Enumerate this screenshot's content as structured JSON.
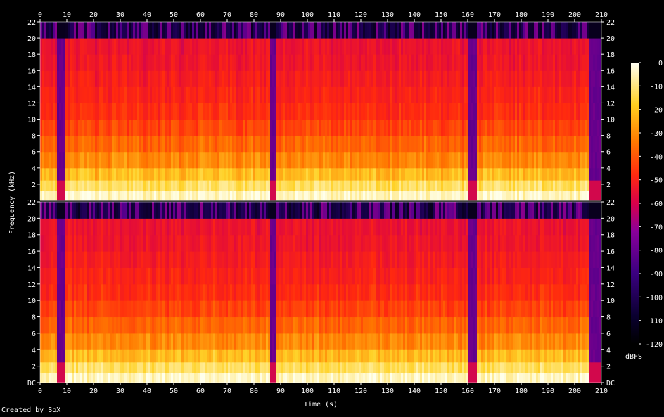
{
  "chart_data": {
    "type": "heatmap",
    "title": "",
    "xlabel": "Time (s)",
    "ylabel": "Frequency (kHz)",
    "xlim": [
      0,
      210
    ],
    "x_ticks": [
      "0",
      "10",
      "20",
      "30",
      "40",
      "50",
      "60",
      "70",
      "80",
      "90",
      "100",
      "110",
      "120",
      "130",
      "140",
      "150",
      "160",
      "170",
      "180",
      "190",
      "200",
      "210"
    ],
    "channels": [
      {
        "ylim": [
          0,
          22
        ],
        "y_ticks": [
          "2",
          "4",
          "6",
          "8",
          "10",
          "12",
          "14",
          "16",
          "18",
          "20",
          "22"
        ]
      },
      {
        "ylim": [
          0,
          22
        ],
        "y_ticks": [
          "DC",
          "2",
          "4",
          "6",
          "8",
          "10",
          "12",
          "14",
          "16",
          "18",
          "20",
          "22"
        ]
      }
    ],
    "colorbar": {
      "label": "dBFS",
      "range": [
        -120,
        0
      ],
      "ticks": [
        "0",
        "-10",
        "-20",
        "-30",
        "-40",
        "-50",
        "-60",
        "-70",
        "-80",
        "-90",
        "-100",
        "-110",
        "-120"
      ]
    },
    "quiet_segments_s": [
      [
        6,
        9
      ],
      [
        86,
        88
      ],
      [
        160,
        163
      ],
      [
        205,
        210
      ]
    ],
    "cutoff_khz": 20,
    "colors": {
      "background": "#000000",
      "low": "#1a0045",
      "mid": "#ff1a0a",
      "high": "#ffffe8"
    }
  },
  "footer": "Created by SoX"
}
